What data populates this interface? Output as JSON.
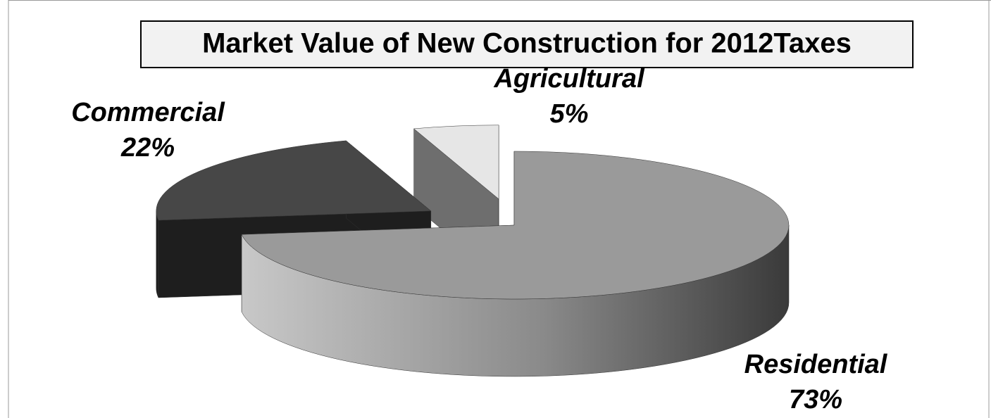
{
  "chart_data": {
    "type": "pie",
    "title": "Market Value of New Construction for 2012Taxes",
    "categories": [
      "Residential",
      "Commercial",
      "Agricultural"
    ],
    "values": [
      73,
      22,
      5
    ],
    "value_labels": [
      "73%",
      "22%",
      "5%"
    ],
    "colors": [
      "#9a9a9a",
      "#474747",
      "#e6e6e6"
    ]
  }
}
